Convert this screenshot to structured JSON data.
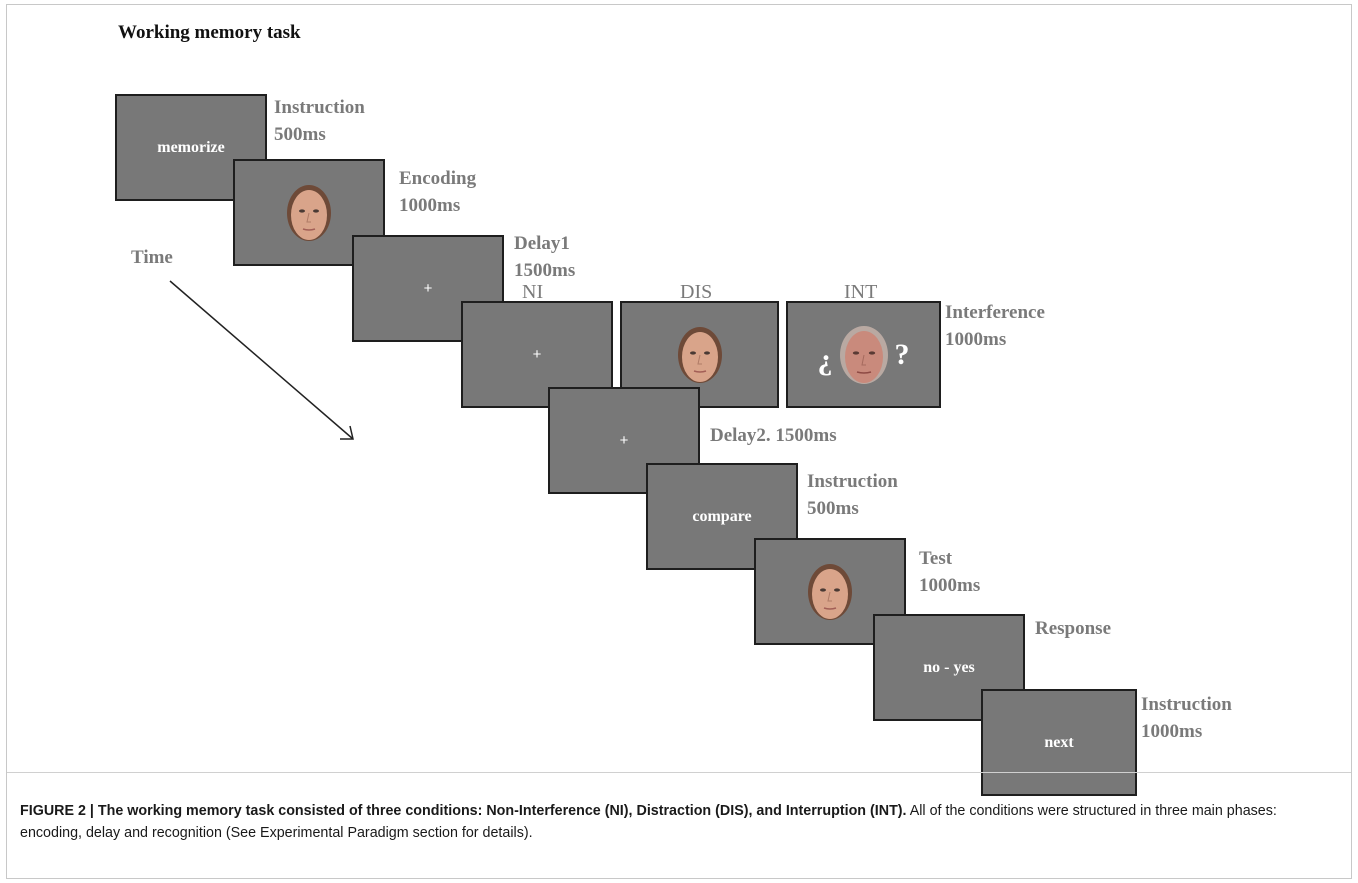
{
  "title": "Working memory task",
  "time_label": "Time",
  "conditions": {
    "ni": "NI",
    "dis": "DIS",
    "int": "INT"
  },
  "screens": {
    "instruction1": "memorize",
    "delay1": "+",
    "ni": "+",
    "delay2": "+",
    "instruction2": "compare",
    "response": "no - yes",
    "instruction3": "next",
    "int_left": "¿",
    "int_right": "?"
  },
  "labels": {
    "instruction1": [
      "Instruction",
      "500ms"
    ],
    "encoding": [
      "Encoding",
      "1000ms"
    ],
    "delay1": [
      "Delay1",
      "1500ms"
    ],
    "interference": [
      "Interference",
      "1000ms"
    ],
    "delay2": "Delay2. 1500ms",
    "instruction2": [
      "Instruction",
      "500ms"
    ],
    "test": [
      "Test",
      "1000ms"
    ],
    "response": "Response",
    "instruction3": [
      "Instruction",
      "1000ms"
    ]
  },
  "caption": {
    "figure_label": "FIGURE 2 | ",
    "bold_text": "The working memory task consisted of three conditions: Non-Interference (NI), Distraction (DIS), and Interruption (INT).",
    "body_text": " All of the conditions were structured in three main phases: encoding, delay and recognition (See Experimental Paradigm section for details)."
  },
  "colors": {
    "screen_bg": "#787878",
    "screen_border": "#1e1e1e",
    "label_gray": "#7a7a7a",
    "face_skin": "#d9a48a",
    "old_face_skin": "#c98a7c"
  },
  "icons": [
    "young-face-icon",
    "old-face-icon",
    "time-arrow-icon"
  ]
}
